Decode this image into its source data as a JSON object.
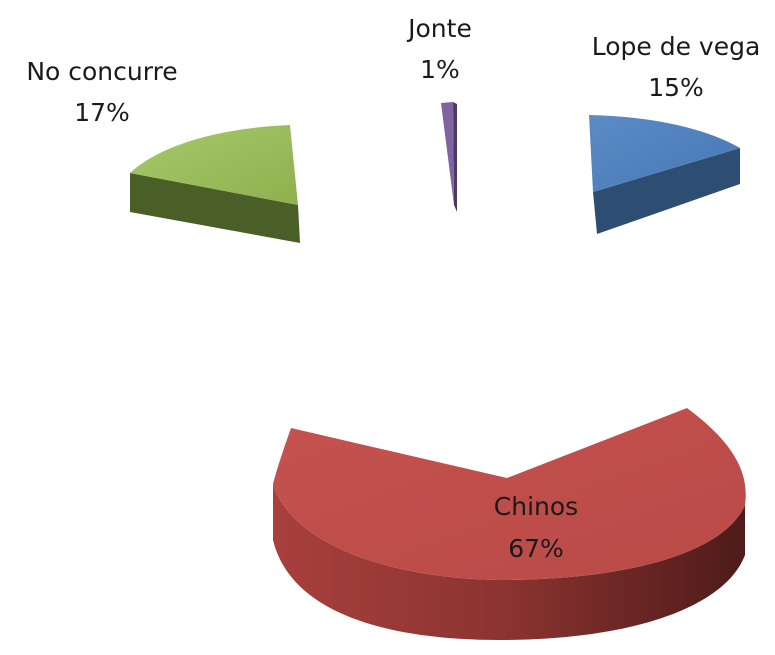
{
  "chart_data": {
    "type": "pie",
    "style": "3d-exploded",
    "title": "",
    "legend": "none",
    "slices": [
      {
        "name": "Lope de vega",
        "percent": 15,
        "label": "15%",
        "color": "#4f81bd"
      },
      {
        "name": "Chinos",
        "percent": 67,
        "label": "67%",
        "color": "#c0504d"
      },
      {
        "name": "No concurre",
        "percent": 17,
        "label": "17%",
        "color": "#9bbb59"
      },
      {
        "name": "Jonte",
        "percent": 1,
        "label": "1%",
        "color": "#8064a2"
      }
    ]
  }
}
